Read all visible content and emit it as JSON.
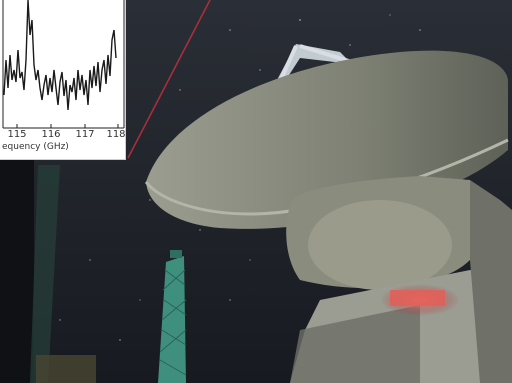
{
  "inset_plot": {
    "x_ticks": [
      "115",
      "116",
      "117",
      "118"
    ],
    "x_axis_label": "equency (GHz)"
  },
  "colors": {
    "sky": "#1c2027",
    "dish": "#8d9082",
    "laser": "#c0303b",
    "tower": "#3f8f7f",
    "red_glow": "#e0605a"
  }
}
